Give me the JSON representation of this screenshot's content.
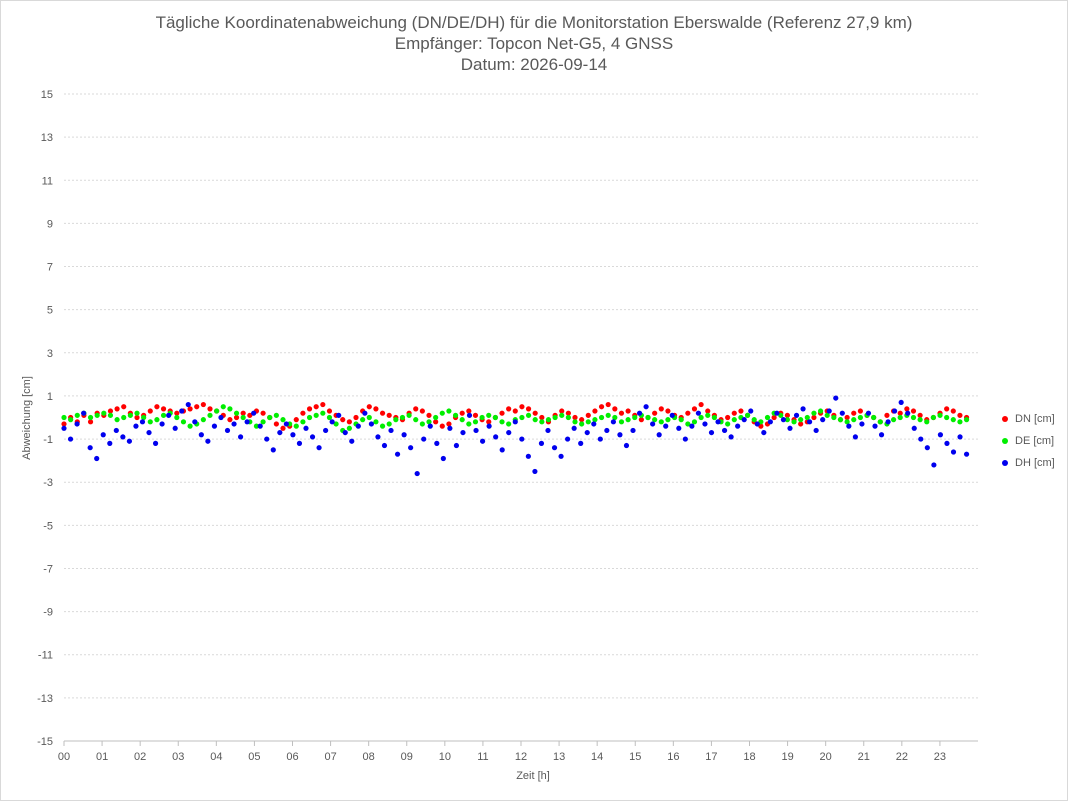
{
  "chart_data": {
    "type": "scatter",
    "title": "Tägliche Koordinatenabweichung (DN/DE/DH) für die Monitorstation Eberswalde (Referenz 27,9 km)",
    "subtitle1": "Empfänger: Topcon Net-G5, 4 GNSS",
    "subtitle2": "Datum: 2026-09-14",
    "xlabel": "Zeit [h]",
    "ylabel": "Abweichung [cm]",
    "xlim": [
      0,
      24
    ],
    "ylim": [
      -15,
      15
    ],
    "yticks": [
      "-15",
      "-13",
      "-11",
      "-9",
      "-7",
      "-5",
      "-3",
      "-1",
      "1",
      "3",
      "5",
      "7",
      "9",
      "11",
      "13",
      "15"
    ],
    "xticks": [
      "00",
      "01",
      "02",
      "03",
      "04",
      "05",
      "06",
      "07",
      "08",
      "09",
      "10",
      "11",
      "12",
      "13",
      "14",
      "15",
      "16",
      "17",
      "18",
      "19",
      "20",
      "21",
      "22",
      "23"
    ],
    "grid": true,
    "legend_position": "right",
    "series": [
      {
        "name": "DN [cm]",
        "color": "#ff0000",
        "values": [
          -0.3,
          0.0,
          -0.2,
          0.1,
          -0.2,
          0.2,
          0.1,
          0.3,
          0.4,
          0.5,
          0.2,
          0.0,
          0.1,
          0.3,
          0.5,
          0.4,
          0.3,
          0.2,
          0.3,
          0.4,
          0.5,
          0.6,
          0.4,
          0.3,
          0.1,
          -0.1,
          0.0,
          0.2,
          0.1,
          0.3,
          0.2,
          0.0,
          -0.3,
          -0.5,
          -0.4,
          -0.1,
          0.2,
          0.4,
          0.5,
          0.6,
          0.3,
          0.1,
          -0.1,
          -0.2,
          0.0,
          0.3,
          0.5,
          0.4,
          0.2,
          0.1,
          0.0,
          -0.1,
          0.2,
          0.4,
          0.3,
          0.1,
          -0.2,
          -0.4,
          -0.3,
          0.0,
          0.2,
          0.3,
          0.1,
          -0.1,
          -0.2,
          0.0,
          0.2,
          0.4,
          0.3,
          0.5,
          0.4,
          0.2,
          0.0,
          -0.2,
          0.1,
          0.3,
          0.2,
          0.0,
          -0.1,
          0.1,
          0.3,
          0.5,
          0.6,
          0.4,
          0.2,
          0.3,
          0.1,
          -0.1,
          0.0,
          0.2,
          0.4,
          0.3,
          0.1,
          0.0,
          0.2,
          0.4,
          0.6,
          0.3,
          0.1,
          -0.1,
          0.0,
          0.2,
          0.3,
          0.1,
          -0.2,
          -0.4,
          -0.3,
          0.0,
          0.2,
          0.1,
          -0.1,
          -0.3,
          -0.2,
          0.0,
          0.2,
          0.3,
          0.1,
          -0.1,
          0.0,
          0.2,
          0.3,
          0.1,
          0.0,
          -0.2,
          0.1,
          0.3,
          0.2,
          0.4,
          0.3,
          0.1,
          -0.1,
          0.0,
          0.2,
          0.4,
          0.3,
          0.1,
          0.0
        ]
      },
      {
        "name": "DE [cm]",
        "color": "#00ee00",
        "values": [
          0.0,
          -0.1,
          0.1,
          0.2,
          0.0,
          0.1,
          0.2,
          0.1,
          -0.1,
          0.0,
          0.1,
          0.2,
          0.0,
          -0.2,
          -0.1,
          0.1,
          0.2,
          0.0,
          -0.2,
          -0.4,
          -0.3,
          -0.1,
          0.1,
          0.3,
          0.5,
          0.4,
          0.2,
          0.0,
          -0.2,
          -0.4,
          -0.2,
          0.0,
          0.1,
          -0.1,
          -0.3,
          -0.4,
          -0.2,
          0.0,
          0.1,
          0.2,
          0.0,
          -0.3,
          -0.6,
          -0.5,
          -0.3,
          -0.1,
          0.0,
          -0.2,
          -0.4,
          -0.3,
          -0.1,
          0.0,
          0.1,
          -0.1,
          -0.3,
          -0.2,
          0.0,
          0.2,
          0.3,
          0.1,
          -0.1,
          -0.3,
          -0.2,
          0.0,
          0.1,
          0.0,
          -0.2,
          -0.3,
          -0.1,
          0.0,
          0.1,
          -0.1,
          -0.2,
          -0.1,
          0.0,
          0.1,
          0.0,
          -0.2,
          -0.3,
          -0.2,
          -0.1,
          0.0,
          0.1,
          0.0,
          -0.2,
          -0.1,
          0.0,
          0.1,
          0.0,
          -0.1,
          -0.2,
          -0.1,
          0.0,
          -0.1,
          -0.3,
          -0.2,
          0.0,
          0.1,
          0.0,
          -0.2,
          -0.3,
          -0.1,
          0.0,
          0.1,
          -0.1,
          -0.2,
          0.0,
          0.2,
          0.1,
          -0.1,
          -0.2,
          -0.1,
          0.0,
          0.2,
          0.3,
          0.1,
          0.0,
          -0.1,
          -0.2,
          -0.1,
          0.0,
          0.1,
          0.0,
          -0.2,
          -0.3,
          -0.1,
          0.0,
          0.1,
          0.0,
          -0.1,
          -0.2,
          0.0,
          0.1,
          0.0,
          -0.1,
          -0.2,
          -0.1
        ]
      },
      {
        "name": "DH [cm]",
        "color": "#0000ee",
        "values": [
          -0.5,
          -1.0,
          -0.3,
          0.2,
          -1.4,
          -1.9,
          -0.8,
          -1.2,
          -0.6,
          -0.9,
          -1.1,
          -0.4,
          -0.2,
          -0.7,
          -1.2,
          -0.3,
          0.1,
          -0.5,
          0.3,
          0.6,
          -0.2,
          -0.8,
          -1.1,
          -0.4,
          0.0,
          -0.6,
          -0.3,
          -0.9,
          -0.2,
          0.2,
          -0.4,
          -1.0,
          -1.5,
          -0.7,
          -0.3,
          -0.8,
          -1.2,
          -0.5,
          -0.9,
          -1.4,
          -0.6,
          -0.2,
          0.1,
          -0.7,
          -1.1,
          -0.4,
          0.2,
          -0.3,
          -0.9,
          -1.3,
          -0.6,
          -1.7,
          -0.8,
          -1.4,
          -2.6,
          -1.0,
          -0.4,
          -1.2,
          -1.9,
          -0.5,
          -1.3,
          -0.7,
          0.1,
          -0.6,
          -1.1,
          -0.4,
          -0.9,
          -1.5,
          -0.7,
          -0.2,
          -1.0,
          -1.8,
          -2.5,
          -1.2,
          -0.6,
          -1.4,
          -1.8,
          -1.0,
          -0.5,
          -1.2,
          -0.7,
          -0.3,
          -1.0,
          -0.6,
          -0.2,
          -0.8,
          -1.3,
          -0.6,
          0.2,
          0.5,
          -0.3,
          -0.8,
          -0.4,
          0.1,
          -0.5,
          -1.0,
          -0.4,
          0.2,
          -0.3,
          -0.7,
          -0.2,
          -0.6,
          -0.9,
          -0.4,
          -0.1,
          0.3,
          -0.3,
          -0.7,
          -0.2,
          0.2,
          -0.1,
          -0.5,
          0.1,
          0.4,
          -0.2,
          -0.6,
          -0.1,
          0.3,
          0.9,
          0.2,
          -0.4,
          -0.9,
          -0.3,
          0.2,
          -0.4,
          -0.8,
          -0.2,
          0.3,
          0.7,
          0.2,
          -0.5,
          -1.0,
          -1.4,
          -2.2,
          -0.8,
          -1.2,
          -1.6,
          -0.9,
          -1.7
        ]
      }
    ]
  }
}
